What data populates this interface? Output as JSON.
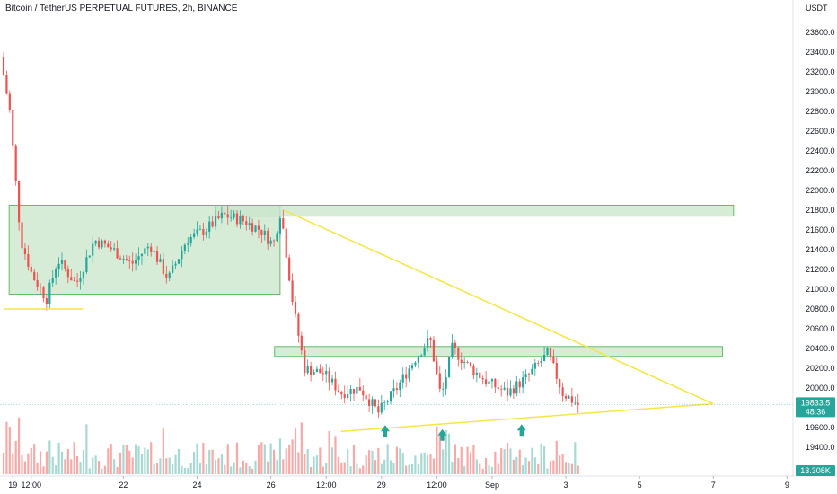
{
  "header": {
    "title": "Bitcoin / TetherUS PERPETUAL FUTURES, 2h, BINANCE",
    "price_unit": "USDT"
  },
  "colors": {
    "up": "#26a69a",
    "down": "#ef5350",
    "vol_up": "#a7d9d3",
    "vol_down": "#f7a9a7",
    "zone_fill": "#c8e6c9",
    "zone_stroke": "#66bb6a",
    "trendline": "#f5e642",
    "arrow": "#26a69a"
  },
  "chart_data": {
    "type": "candlestick",
    "title": "Bitcoin / TetherUS PERPETUAL FUTURES, 2h, BINANCE",
    "ylabel": "USDT",
    "ylim": [
      19300,
      23800
    ],
    "x_range_days": [
      18.75,
      39.5
    ],
    "x_ticks": [
      {
        "day": 19,
        "label": "19"
      },
      {
        "day": 19.5,
        "label": "12:00"
      },
      {
        "day": 22,
        "label": "22"
      },
      {
        "day": 24,
        "label": "24"
      },
      {
        "day": 26,
        "label": "26"
      },
      {
        "day": 27.5,
        "label": "12:00"
      },
      {
        "day": 29,
        "label": "29"
      },
      {
        "day": 30.5,
        "label": "12:00"
      },
      {
        "day": 32,
        "label": "Sep"
      },
      {
        "day": 34,
        "label": "3"
      },
      {
        "day": 36,
        "label": "5"
      },
      {
        "day": 38,
        "label": "7"
      },
      {
        "day": 40,
        "label": "9"
      }
    ],
    "y_ticks": [
      19400,
      19600,
      20000,
      20200,
      20400,
      20600,
      20800,
      21000,
      21200,
      21400,
      21600,
      21800,
      22000,
      22200,
      22400,
      22600,
      22800,
      23000,
      23200,
      23400,
      23600
    ],
    "price_badge": {
      "price": "19833.5",
      "countdown": "48:36",
      "value": 19833.5
    },
    "volume_badge": "13.308K",
    "key_points": [
      {
        "day": 18.75,
        "price": 23350
      },
      {
        "day": 19.0,
        "price": 22800
      },
      {
        "day": 19.3,
        "price": 21500
      },
      {
        "day": 19.6,
        "price": 21150
      },
      {
        "day": 20.0,
        "price": 20900
      },
      {
        "day": 20.3,
        "price": 21300
      },
      {
        "day": 20.8,
        "price": 21050
      },
      {
        "day": 21.3,
        "price": 21500
      },
      {
        "day": 21.8,
        "price": 21400
      },
      {
        "day": 22.3,
        "price": 21250
      },
      {
        "day": 22.8,
        "price": 21450
      },
      {
        "day": 23.3,
        "price": 21100
      },
      {
        "day": 23.8,
        "price": 21500
      },
      {
        "day": 24.3,
        "price": 21600
      },
      {
        "day": 24.8,
        "price": 21750
      },
      {
        "day": 25.3,
        "price": 21700
      },
      {
        "day": 25.8,
        "price": 21600
      },
      {
        "day": 26.15,
        "price": 21450
      },
      {
        "day": 26.35,
        "price": 21800
      },
      {
        "day": 26.7,
        "price": 20800
      },
      {
        "day": 27.0,
        "price": 20200
      },
      {
        "day": 27.5,
        "price": 20150
      },
      {
        "day": 28.0,
        "price": 19950
      },
      {
        "day": 28.5,
        "price": 20000
      },
      {
        "day": 29.0,
        "price": 19750
      },
      {
        "day": 29.5,
        "price": 20000
      },
      {
        "day": 30.0,
        "price": 20300
      },
      {
        "day": 30.4,
        "price": 20500
      },
      {
        "day": 30.7,
        "price": 19900
      },
      {
        "day": 31.0,
        "price": 20400
      },
      {
        "day": 31.5,
        "price": 20200
      },
      {
        "day": 32.0,
        "price": 20050
      },
      {
        "day": 32.5,
        "price": 19950
      },
      {
        "day": 33.0,
        "price": 20100
      },
      {
        "day": 33.6,
        "price": 20350
      },
      {
        "day": 34.0,
        "price": 19950
      },
      {
        "day": 34.4,
        "price": 19833
      }
    ],
    "zones": [
      {
        "from_day": 18.9,
        "to_day": 26.25,
        "low": 20950,
        "high": 21850
      },
      {
        "from_day": 24.5,
        "to_day": 38.55,
        "low": 21740,
        "high": 21850
      },
      {
        "from_day": 26.1,
        "to_day": 38.25,
        "low": 20320,
        "high": 20420
      }
    ],
    "trendlines": [
      {
        "from": {
          "day": 26.35,
          "price": 21800
        },
        "to": {
          "day": 38.0,
          "price": 19840
        }
      },
      {
        "from": {
          "day": 27.9,
          "price": 19560
        },
        "to": {
          "day": 38.0,
          "price": 19840
        }
      },
      {
        "from": {
          "day": 18.75,
          "price": 20800
        },
        "to": {
          "day": 20.9,
          "price": 20800
        }
      }
    ],
    "arrows": [
      {
        "day": 29.1,
        "price": 19570
      },
      {
        "day": 30.65,
        "price": 19530
      },
      {
        "day": 32.8,
        "price": 19580
      }
    ]
  }
}
